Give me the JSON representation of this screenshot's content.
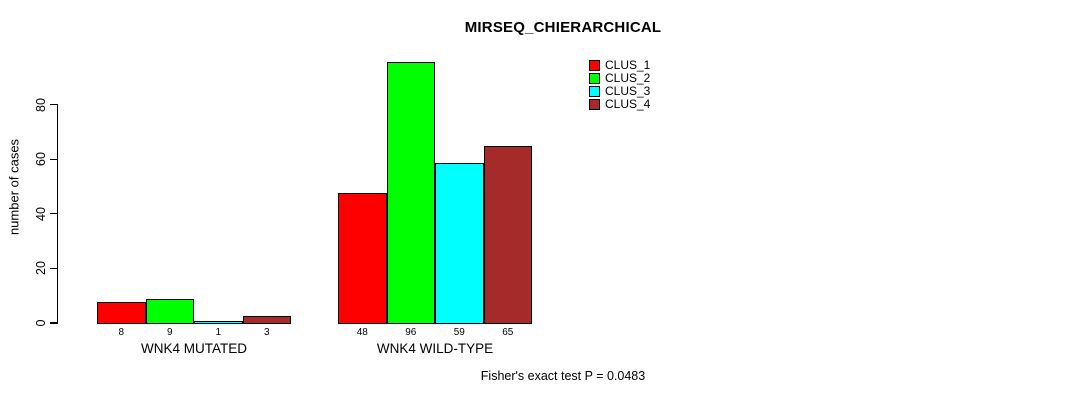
{
  "chart_data": {
    "type": "bar",
    "title": "MIRSEQ_CHIERARCHICAL",
    "ylabel": "number of cases",
    "annotation": "Fisher's exact test P = 0.0483",
    "categories": [
      "WNK4 MUTATED",
      "WNK4 WILD-TYPE"
    ],
    "series": [
      {
        "name": "CLUS_1",
        "color": "#FF0000",
        "values": [
          8,
          48
        ]
      },
      {
        "name": "CLUS_2",
        "color": "#00FF00",
        "values": [
          9,
          96
        ]
      },
      {
        "name": "CLUS_3",
        "color": "#00FFFF",
        "values": [
          1,
          59
        ]
      },
      {
        "name": "CLUS_4",
        "color": "#A52A2A",
        "values": [
          3,
          65
        ]
      }
    ],
    "yticks": [
      0,
      20,
      40,
      60,
      80
    ],
    "ylim": [
      0,
      99
    ],
    "bar_value_labels_shown": true,
    "legend_position": "top-right",
    "grid": false,
    "axis_color": "#000000",
    "background": "#FFFFFF"
  }
}
